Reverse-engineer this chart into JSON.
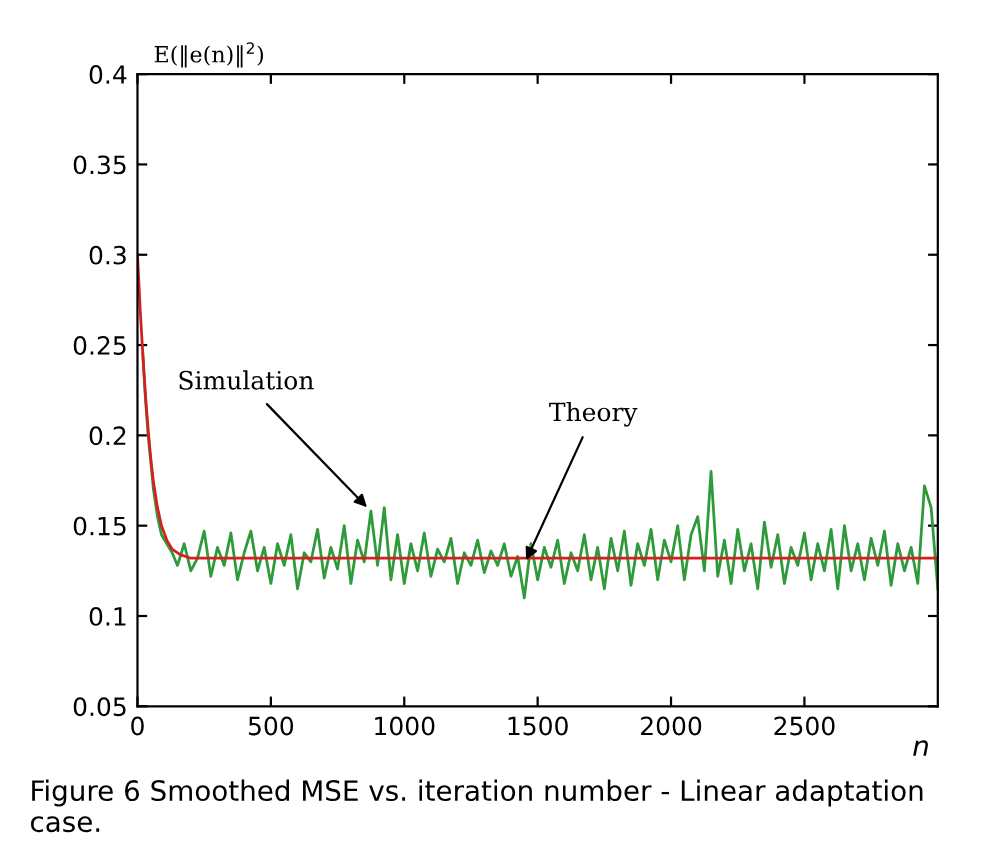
{
  "chart_data": {
    "type": "line",
    "ylabel": "E(‖e(n)‖$^{2}$)",
    "xlabel": "n",
    "xlim": [
      0,
      3000
    ],
    "xticks": [
      0,
      500,
      1000,
      1500,
      2000,
      2500
    ],
    "ylim": [
      0.05,
      0.4
    ],
    "yticks": [
      0.05,
      0.1,
      0.15,
      0.2,
      0.25,
      0.3,
      0.35,
      0.4
    ],
    "grid": false,
    "legend": false,
    "marker": "none",
    "line_style": "solid",
    "series": [
      {
        "color": "#2e9a3a",
        "x": [
          20,
          30,
          40,
          50,
          60,
          75,
          90,
          110,
          130,
          150,
          175,
          200,
          225,
          250,
          275,
          300,
          325,
          350,
          375,
          400,
          425,
          450,
          475,
          500,
          525,
          550,
          575,
          600,
          625,
          650,
          675,
          700,
          725,
          750,
          775,
          800,
          825,
          850,
          875,
          900,
          925,
          950,
          975,
          1000,
          1025,
          1050,
          1075,
          1100,
          1125,
          1150,
          1175,
          1200,
          1225,
          1250,
          1275,
          1300,
          1325,
          1350,
          1375,
          1400,
          1425,
          1450,
          1475,
          1500,
          1525,
          1550,
          1575,
          1600,
          1625,
          1650,
          1675,
          1700,
          1725,
          1750,
          1775,
          1800,
          1825,
          1850,
          1875,
          1900,
          1925,
          1950,
          1975,
          2000,
          2025,
          2050,
          2075,
          2100,
          2125,
          2150,
          2175,
          2200,
          2225,
          2250,
          2275,
          2300,
          2325,
          2350,
          2375,
          2400,
          2425,
          2450,
          2475,
          2500,
          2525,
          2550,
          2575,
          2600,
          2625,
          2650,
          2675,
          2700,
          2725,
          2750,
          2775,
          2800,
          2825,
          2850,
          2875,
          2900,
          2925,
          2950,
          2975,
          3000
        ],
        "values": [
          0.245,
          0.22,
          0.2,
          0.185,
          0.17,
          0.155,
          0.145,
          0.14,
          0.135,
          0.128,
          0.14,
          0.125,
          0.132,
          0.147,
          0.122,
          0.138,
          0.128,
          0.146,
          0.12,
          0.135,
          0.147,
          0.125,
          0.138,
          0.118,
          0.14,
          0.128,
          0.145,
          0.115,
          0.135,
          0.13,
          0.148,
          0.121,
          0.138,
          0.126,
          0.15,
          0.118,
          0.142,
          0.13,
          0.158,
          0.128,
          0.16,
          0.12,
          0.145,
          0.118,
          0.14,
          0.125,
          0.146,
          0.122,
          0.137,
          0.13,
          0.143,
          0.118,
          0.135,
          0.128,
          0.142,
          0.124,
          0.136,
          0.128,
          0.14,
          0.122,
          0.133,
          0.11,
          0.14,
          0.12,
          0.138,
          0.127,
          0.142,
          0.118,
          0.135,
          0.125,
          0.145,
          0.12,
          0.138,
          0.115,
          0.143,
          0.125,
          0.147,
          0.117,
          0.14,
          0.128,
          0.148,
          0.12,
          0.142,
          0.13,
          0.15,
          0.12,
          0.145,
          0.155,
          0.125,
          0.18,
          0.122,
          0.142,
          0.118,
          0.148,
          0.125,
          0.14,
          0.115,
          0.152,
          0.127,
          0.145,
          0.118,
          0.138,
          0.128,
          0.146,
          0.12,
          0.14,
          0.125,
          0.148,
          0.115,
          0.15,
          0.125,
          0.14,
          0.12,
          0.143,
          0.128,
          0.147,
          0.117,
          0.14,
          0.125,
          0.138,
          0.118,
          0.172,
          0.16,
          0.115
        ]
      },
      {
        "color": "#d42020",
        "x": [
          0,
          10,
          20,
          30,
          40,
          50,
          60,
          75,
          90,
          110,
          130,
          160,
          200,
          300,
          3000
        ],
        "values": [
          0.3,
          0.27,
          0.245,
          0.222,
          0.203,
          0.187,
          0.174,
          0.16,
          0.15,
          0.142,
          0.137,
          0.134,
          0.132,
          0.132,
          0.132
        ]
      }
    ],
    "annotations": [
      {
        "text": "Simulation",
        "x": 875,
        "y": 0.158
      },
      {
        "text": "Theory",
        "x": 1448,
        "y": 0.128
      },
      "Figure 6 Smoothed MSE vs. iteration number - Linear adaptation case."
    ]
  }
}
